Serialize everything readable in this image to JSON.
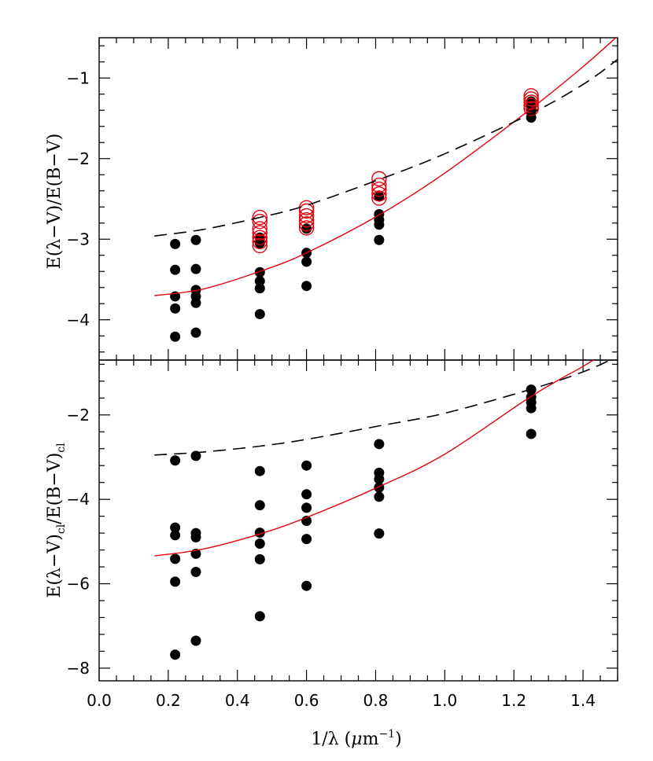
{
  "chart_data": [
    {
      "type": "scatter",
      "panel": "top",
      "xlabel": "1/λ (μm⁻¹)",
      "ylabel": "E(λ−V)/E(B−V)",
      "xlim": [
        0.0,
        1.5
      ],
      "ylim": [
        -4.5,
        -0.5
      ],
      "x_ticks": [
        "0.0",
        "0.2",
        "0.4",
        "0.6",
        "0.8",
        "1.0",
        "1.2",
        "1.4"
      ],
      "y_ticks": [
        "−1",
        "−2",
        "−3",
        "−4"
      ],
      "y_tick_values": [
        -1,
        -2,
        -3,
        -4
      ],
      "series": [
        {
          "marker": "filled-circle",
          "color": "#000000",
          "points": [
            [
              0.22,
              -3.06
            ],
            [
              0.22,
              -3.38
            ],
            [
              0.22,
              -3.71
            ],
            [
              0.22,
              -3.86
            ],
            [
              0.22,
              -4.21
            ],
            [
              0.28,
              -3.01
            ],
            [
              0.28,
              -3.37
            ],
            [
              0.28,
              -3.63
            ],
            [
              0.28,
              -3.71
            ],
            [
              0.28,
              -3.79
            ],
            [
              0.28,
              -4.16
            ],
            [
              0.465,
              -2.98
            ],
            [
              0.465,
              -3.05
            ],
            [
              0.465,
              -3.41
            ],
            [
              0.465,
              -3.52
            ],
            [
              0.465,
              -3.61
            ],
            [
              0.465,
              -3.93
            ],
            [
              0.6,
              -2.87
            ],
            [
              0.6,
              -3.17
            ],
            [
              0.6,
              -3.28
            ],
            [
              0.6,
              -3.58
            ],
            [
              0.81,
              -2.47
            ],
            [
              0.81,
              -2.69
            ],
            [
              0.81,
              -2.76
            ],
            [
              0.81,
              -2.82
            ],
            [
              0.81,
              -3.01
            ],
            [
              1.25,
              -1.29
            ],
            [
              1.25,
              -1.34
            ],
            [
              1.25,
              -1.37
            ],
            [
              1.25,
              -1.41
            ],
            [
              1.25,
              -1.49
            ]
          ]
        },
        {
          "marker": "open-circle",
          "color": "#e8000b",
          "points": [
            [
              0.465,
              -2.73
            ],
            [
              0.465,
              -2.78
            ],
            [
              0.465,
              -2.87
            ],
            [
              0.465,
              -2.92
            ],
            [
              0.465,
              -2.98
            ],
            [
              0.465,
              -3.03
            ],
            [
              0.465,
              -3.08
            ],
            [
              0.6,
              -2.61
            ],
            [
              0.6,
              -2.65
            ],
            [
              0.6,
              -2.71
            ],
            [
              0.6,
              -2.76
            ],
            [
              0.6,
              -2.81
            ],
            [
              0.6,
              -2.86
            ],
            [
              0.81,
              -2.25
            ],
            [
              0.81,
              -2.33
            ],
            [
              0.81,
              -2.38
            ],
            [
              0.81,
              -2.44
            ],
            [
              0.81,
              -2.49
            ],
            [
              1.25,
              -1.22
            ],
            [
              1.25,
              -1.26
            ],
            [
              1.25,
              -1.3
            ],
            [
              1.25,
              -1.34
            ],
            [
              1.25,
              -1.38
            ]
          ]
        },
        {
          "line": "solid",
          "color": "#e8000b",
          "points": [
            [
              0.16,
              -3.7
            ],
            [
              0.3,
              -3.62
            ],
            [
              0.465,
              -3.4
            ],
            [
              0.6,
              -3.17
            ],
            [
              0.81,
              -2.7
            ],
            [
              1.0,
              -2.18
            ],
            [
              1.25,
              -1.38
            ],
            [
              1.4,
              -0.86
            ],
            [
              1.5,
              -0.48
            ]
          ]
        },
        {
          "line": "dashed",
          "color": "#000000",
          "points": [
            [
              0.16,
              -2.96
            ],
            [
              0.3,
              -2.88
            ],
            [
              0.465,
              -2.73
            ],
            [
              0.6,
              -2.58
            ],
            [
              0.81,
              -2.26
            ],
            [
              1.0,
              -1.94
            ],
            [
              1.25,
              -1.44
            ],
            [
              1.4,
              -1.08
            ],
            [
              1.5,
              -0.77
            ]
          ]
        }
      ]
    },
    {
      "type": "scatter",
      "panel": "bottom",
      "xlabel": "1/λ (μm⁻¹)",
      "ylabel": "E(λ−V)cl/E(B−V)cl",
      "xlim": [
        0.0,
        1.5
      ],
      "ylim": [
        -8.3,
        -0.7
      ],
      "x_ticks": [
        "0.0",
        "0.2",
        "0.4",
        "0.6",
        "0.8",
        "1.0",
        "1.2",
        "1.4"
      ],
      "y_ticks": [
        "−2",
        "−4",
        "−6",
        "−8"
      ],
      "y_tick_values": [
        -2,
        -4,
        -6,
        -8
      ],
      "series": [
        {
          "marker": "filled-circle",
          "color": "#000000",
          "points": [
            [
              0.22,
              -3.08
            ],
            [
              0.22,
              -4.67
            ],
            [
              0.22,
              -4.85
            ],
            [
              0.22,
              -5.41
            ],
            [
              0.22,
              -5.95
            ],
            [
              0.22,
              -7.68
            ],
            [
              0.28,
              -2.97
            ],
            [
              0.28,
              -4.8
            ],
            [
              0.28,
              -4.9
            ],
            [
              0.28,
              -5.29
            ],
            [
              0.28,
              -5.72
            ],
            [
              0.28,
              -7.35
            ],
            [
              0.465,
              -3.33
            ],
            [
              0.465,
              -4.14
            ],
            [
              0.465,
              -4.79
            ],
            [
              0.465,
              -5.05
            ],
            [
              0.465,
              -5.42
            ],
            [
              0.465,
              -6.77
            ],
            [
              0.6,
              -3.2
            ],
            [
              0.6,
              -3.88
            ],
            [
              0.6,
              -4.2
            ],
            [
              0.6,
              -4.51
            ],
            [
              0.6,
              -4.94
            ],
            [
              0.6,
              -6.05
            ],
            [
              0.81,
              -2.69
            ],
            [
              0.81,
              -3.37
            ],
            [
              0.81,
              -3.52
            ],
            [
              0.81,
              -3.72
            ],
            [
              0.81,
              -3.94
            ],
            [
              0.81,
              -4.81
            ],
            [
              1.25,
              -1.4
            ],
            [
              1.25,
              -1.58
            ],
            [
              1.25,
              -1.7
            ],
            [
              1.25,
              -1.84
            ],
            [
              1.25,
              -2.45
            ]
          ]
        },
        {
          "line": "solid",
          "color": "#e8000b",
          "points": [
            [
              0.16,
              -5.34
            ],
            [
              0.3,
              -5.18
            ],
            [
              0.465,
              -4.82
            ],
            [
              0.6,
              -4.43
            ],
            [
              0.81,
              -3.7
            ],
            [
              1.0,
              -2.93
            ],
            [
              1.25,
              -1.56
            ],
            [
              1.4,
              -0.85
            ],
            [
              1.45,
              -0.59
            ]
          ]
        },
        {
          "line": "dashed",
          "color": "#000000",
          "points": [
            [
              0.16,
              -2.95
            ],
            [
              0.3,
              -2.88
            ],
            [
              0.465,
              -2.74
            ],
            [
              0.6,
              -2.58
            ],
            [
              0.81,
              -2.26
            ],
            [
              1.0,
              -1.96
            ],
            [
              1.25,
              -1.39
            ],
            [
              1.4,
              -0.98
            ],
            [
              1.5,
              -0.62
            ]
          ]
        }
      ]
    }
  ]
}
